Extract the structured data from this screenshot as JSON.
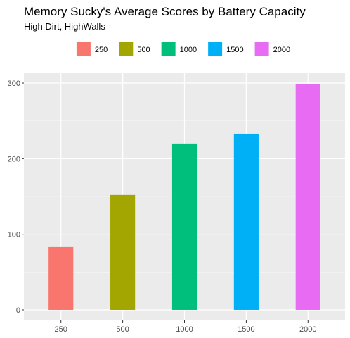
{
  "chart_data": {
    "type": "bar",
    "title": "Memory Sucky's Average Scores by Battery Capacity",
    "subtitle": "High Dirt, HighWalls",
    "xlabel": "",
    "ylabel": "",
    "categories": [
      "250",
      "500",
      "1000",
      "1500",
      "2000"
    ],
    "values": [
      83,
      152,
      220,
      233,
      299
    ],
    "colors": [
      "#F8766D",
      "#A3A500",
      "#00BF7D",
      "#00B0F6",
      "#E76BF3"
    ],
    "ylim": [
      -14,
      314
    ],
    "yticks": [
      0,
      100,
      200,
      300
    ],
    "grid": true,
    "legend": {
      "position": "top",
      "entries": [
        "250",
        "500",
        "1000",
        "1500",
        "2000"
      ]
    }
  }
}
